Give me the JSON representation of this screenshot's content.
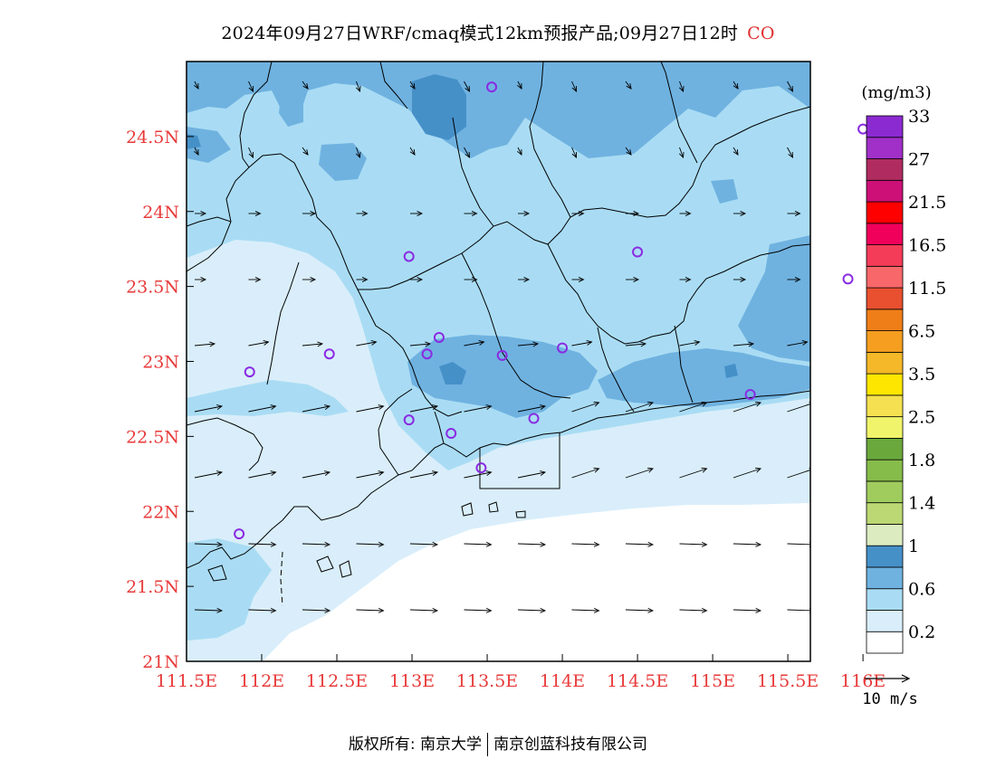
{
  "title": {
    "main": "2024年09月27日WRF/cmaq模式12km预报产品;09月27日12时",
    "pollutant": "CO"
  },
  "colorbar": {
    "unit": "(mg/m3)",
    "colors": [
      "#ffffff",
      "#d9eefa",
      "#a9dcf4",
      "#6fb2e0",
      "#4690c8",
      "#dcecc0",
      "#bcd874",
      "#a0cc5e",
      "#86bc4a",
      "#6aa83c",
      "#f0f46a",
      "#f4e050",
      "#ffe600",
      "#f4b828",
      "#f59e20",
      "#f07e18",
      "#e85030",
      "#f8686a",
      "#f43c58",
      "#f0005a",
      "#ff0000",
      "#cc1078",
      "#b02c60",
      "#a030c8",
      "#8c2ad2"
    ],
    "labels": [
      "0.2",
      "0.6",
      "1",
      "1.4",
      "1.8",
      "2.5",
      "3.5",
      "6.5",
      "11.5",
      "16.5",
      "21.5",
      "27",
      "33"
    ]
  },
  "axes": {
    "x_labels": [
      "111.5E",
      "112E",
      "112.5E",
      "113E",
      "113.5E",
      "114E",
      "114.5E",
      "115E",
      "115.5E",
      "116E"
    ],
    "y_labels": [
      "21N",
      "21.5N",
      "22N",
      "22.5N",
      "23N",
      "23.5N",
      "24N",
      "24.5N"
    ],
    "x_range": [
      111.5,
      115.65
    ],
    "y_range": [
      21.0,
      25.0
    ],
    "label_color": "#e83a3a"
  },
  "wind_legend": {
    "label": "10 m/s"
  },
  "stations": [
    [
      113.53,
      24.83
    ],
    [
      116.0,
      24.55
    ],
    [
      112.98,
      23.7
    ],
    [
      114.5,
      23.73
    ],
    [
      115.9,
      23.55
    ],
    [
      113.18,
      23.16
    ],
    [
      113.1,
      23.05
    ],
    [
      113.6,
      23.04
    ],
    [
      114.0,
      23.09
    ],
    [
      112.45,
      23.05
    ],
    [
      111.92,
      22.93
    ],
    [
      115.25,
      22.78
    ],
    [
      112.98,
      22.61
    ],
    [
      113.26,
      22.52
    ],
    [
      113.81,
      22.62
    ],
    [
      113.46,
      22.29
    ],
    [
      111.85,
      21.85
    ]
  ],
  "footer": {
    "left": "版权所有: 南京大学",
    "right": "南京创蓝科技有限公司"
  }
}
